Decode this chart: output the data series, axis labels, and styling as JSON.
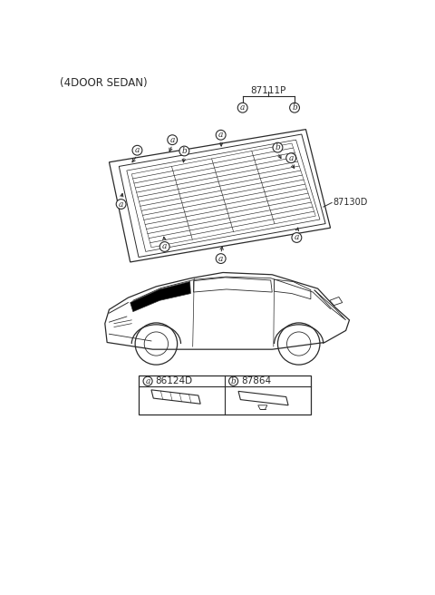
{
  "title": "(4DOOR SEDAN)",
  "bg_color": "#ffffff",
  "line_color": "#2a2a2a",
  "part_number_main": "87111P",
  "part_number_87130D": "87130D",
  "legend_a_code": "86124D",
  "legend_b_code": "87864"
}
